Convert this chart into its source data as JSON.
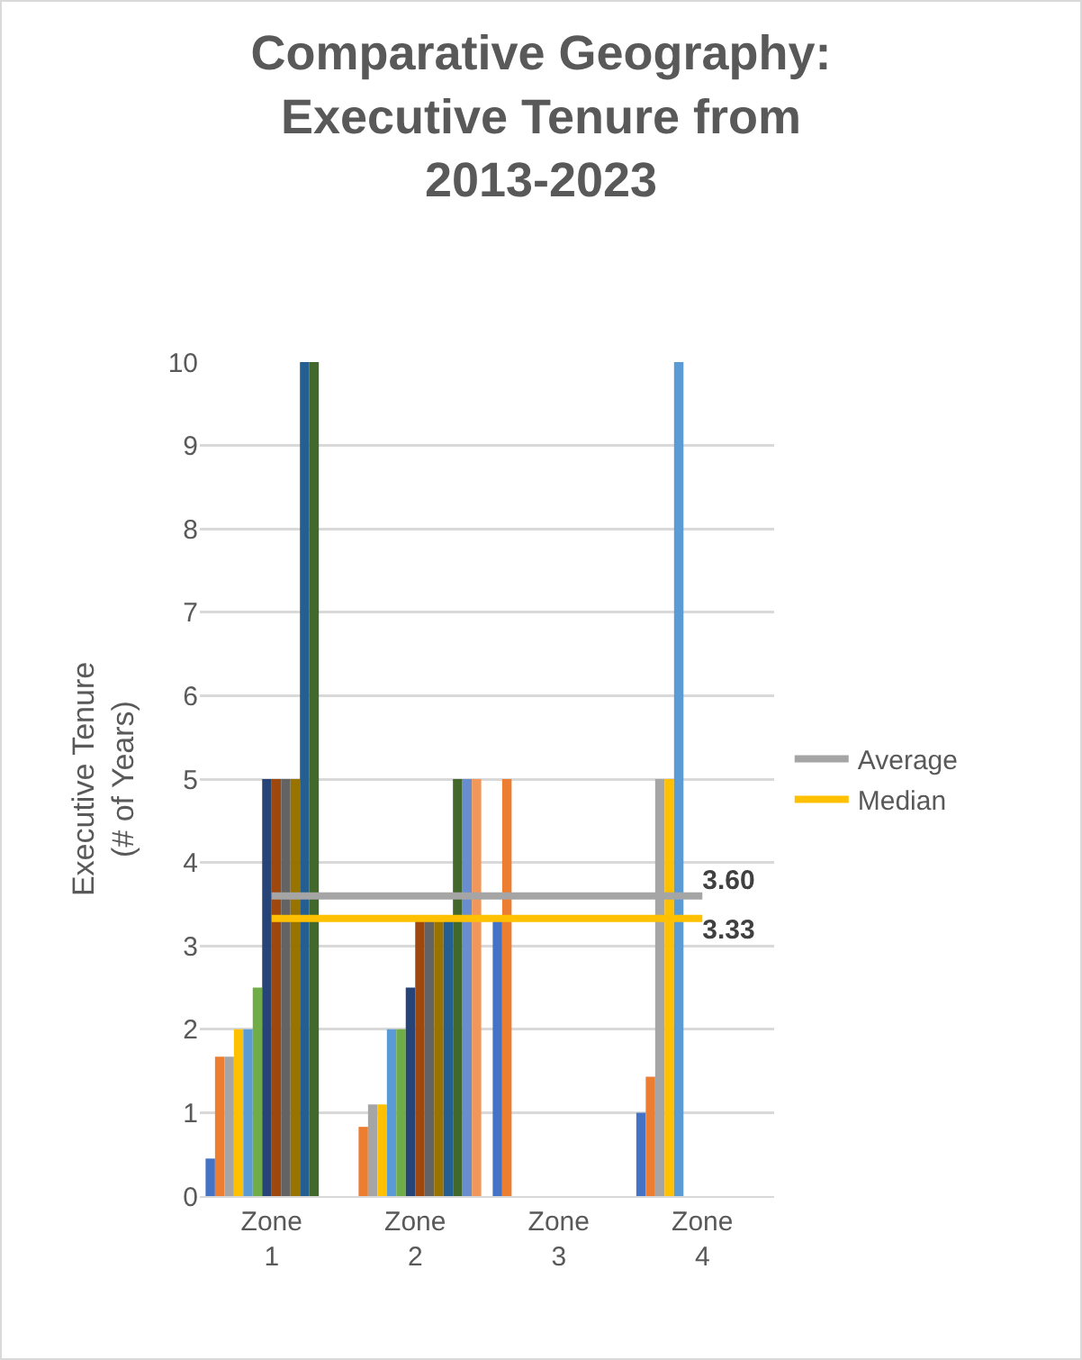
{
  "chart_data": {
    "type": "bar",
    "title": "Comparative Geography: Executive Tenure from 2013-2023",
    "ylabel": "Executive Tenure (# of Years)",
    "categories": [
      "Zone 1",
      "Zone 2",
      "Zone 3",
      "Zone 4"
    ],
    "ylim": [
      0,
      10
    ],
    "yticks": [
      0,
      1,
      2,
      3,
      4,
      5,
      6,
      7,
      8,
      9,
      10
    ],
    "grid": "y",
    "legend": "right",
    "series": [
      {
        "color": "#4472c4",
        "values": [
          0.45,
          null,
          3.33,
          1.0
        ]
      },
      {
        "color": "#ed7d31",
        "values": [
          1.67,
          0.83,
          5,
          1.43
        ]
      },
      {
        "color": "#a5a5a5",
        "values": [
          1.67,
          1.1,
          null,
          5
        ]
      },
      {
        "color": "#ffc000",
        "values": [
          2,
          1.1,
          null,
          5
        ]
      },
      {
        "color": "#5b9bd5",
        "values": [
          2,
          2,
          null,
          10
        ]
      },
      {
        "color": "#70ad47",
        "values": [
          2.5,
          2,
          null,
          null
        ]
      },
      {
        "color": "#264478",
        "values": [
          5,
          2.5,
          null,
          null
        ]
      },
      {
        "color": "#9e480e",
        "values": [
          5,
          3.33,
          null,
          null
        ]
      },
      {
        "color": "#636363",
        "values": [
          5,
          3.33,
          null,
          null
        ]
      },
      {
        "color": "#997300",
        "values": [
          5,
          3.33,
          null,
          null
        ]
      },
      {
        "color": "#255e91",
        "values": [
          10,
          3.33,
          null,
          null
        ]
      },
      {
        "color": "#43682b",
        "values": [
          10,
          5,
          null,
          null
        ]
      },
      {
        "color": "#698ed0",
        "values": [
          null,
          5,
          null,
          null
        ]
      },
      {
        "color": "#f1975a",
        "values": [
          null,
          5,
          null,
          null
        ]
      },
      {
        "type": "line",
        "name": "Average",
        "color": "#a5a5a5",
        "values": [
          3.6,
          3.6,
          3.6,
          3.6
        ],
        "value_labels": [
          null,
          null,
          null,
          "3.60"
        ]
      },
      {
        "type": "line",
        "name": "Median",
        "color": "#ffc000",
        "values": [
          3.33,
          3.33,
          3.33,
          3.33
        ],
        "value_labels": [
          null,
          null,
          null,
          "3.33"
        ]
      }
    ]
  }
}
